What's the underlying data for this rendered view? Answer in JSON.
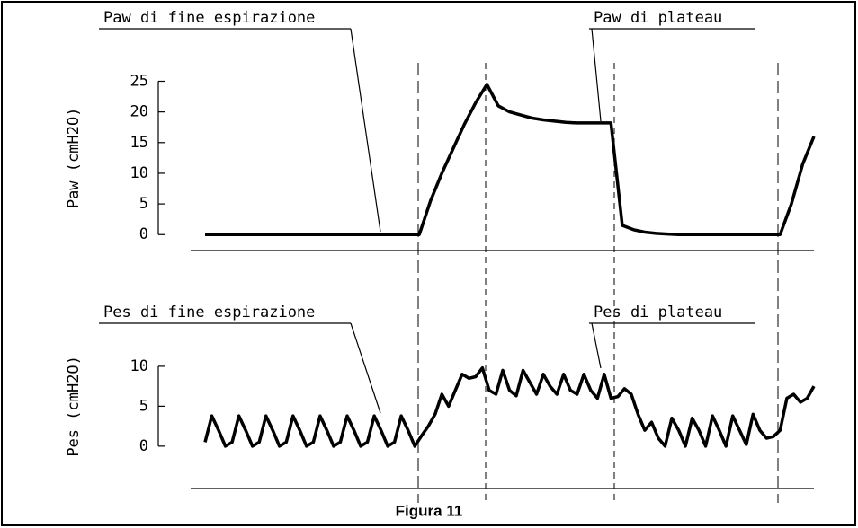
{
  "caption": "Figura 11",
  "chart_data": [
    {
      "type": "line",
      "ylabel": "Paw (cmH2O)",
      "ylim": [
        -2.6,
        28
      ],
      "yticks": [
        0,
        5,
        10,
        15,
        20,
        25
      ],
      "annotations": [
        "Paw di fine espirazione",
        "Paw di plateau"
      ],
      "color": "#000000",
      "values": [
        0,
        0,
        0,
        0,
        0,
        0,
        0,
        0,
        0,
        0,
        0,
        0,
        0,
        0,
        0,
        0,
        0,
        0,
        0,
        0,
        5.5,
        10,
        14,
        18,
        21.5,
        24.5,
        21,
        20,
        19.5,
        19,
        18.7,
        18.5,
        18.3,
        18.2,
        18.2,
        18.2,
        18.2,
        1.5,
        0.8,
        0.4,
        0.2,
        0.1,
        0,
        0,
        0,
        0,
        0,
        0,
        0,
        0,
        0,
        0,
        5,
        11.5,
        16
      ]
    },
    {
      "type": "line",
      "ylabel": "Pes (cmH2O)",
      "ylim": [
        -5.3,
        13.7
      ],
      "yticks": [
        0,
        5,
        10
      ],
      "annotations": [
        "Pes di fine espirazione",
        "Pes di plateau"
      ],
      "color": "#000000",
      "values": [
        0.5,
        3.8,
        2,
        0,
        0.5,
        3.8,
        2,
        0,
        0.5,
        3.8,
        2,
        0,
        0.5,
        3.8,
        2,
        0,
        0.5,
        3.8,
        2,
        0,
        0.5,
        3.8,
        2,
        0,
        0.5,
        3.8,
        2,
        0,
        0.5,
        3.8,
        2,
        0,
        1.3,
        2.5,
        4,
        6.5,
        5,
        7,
        9,
        8.5,
        8.7,
        9.8,
        7,
        6.5,
        9.5,
        7,
        6.3,
        9.5,
        8,
        6.5,
        9,
        7.5,
        6.5,
        9,
        7,
        6.5,
        9,
        7,
        6,
        9,
        6,
        6.2,
        7.2,
        6.5,
        4,
        2,
        3,
        1,
        0,
        3.5,
        2,
        0,
        3.5,
        2,
        0,
        3.8,
        2,
        0,
        3.8,
        2,
        0.2,
        4,
        2,
        1,
        1.2,
        2,
        6,
        6.5,
        5.5,
        6,
        7.5
      ]
    }
  ]
}
